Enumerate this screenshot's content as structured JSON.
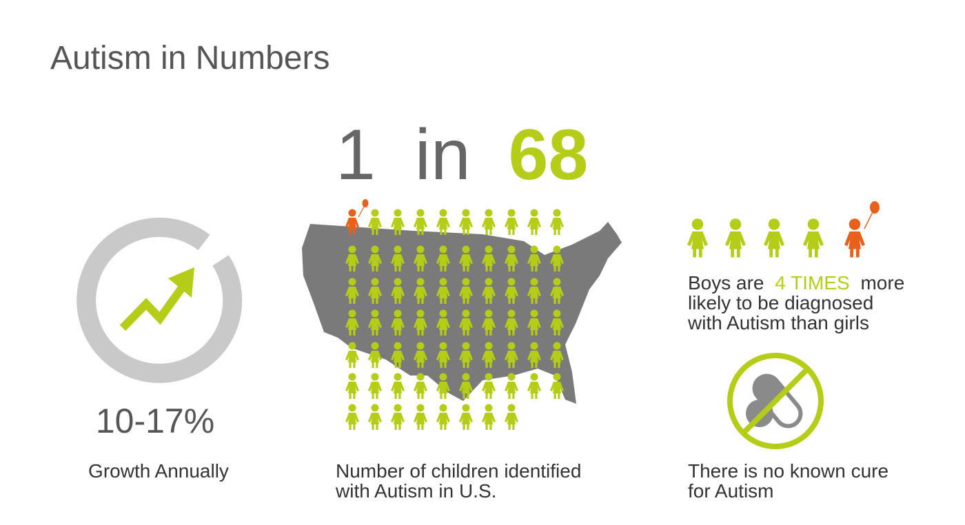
{
  "title": "Autism in Numbers",
  "growth": {
    "value": "10-17%",
    "caption": "Growth Annually"
  },
  "prevalence": {
    "numerator": 1,
    "connector": "in",
    "denominator": 68,
    "caption": [
      "Number of children identified",
      "with Autism in U.S."
    ]
  },
  "gender": {
    "pre": "Boys are",
    "highlight": "4 TIMES",
    "post": "more",
    "lines": [
      "likely to be diagnosed",
      "with Autism than girls"
    ]
  },
  "cure": {
    "caption": [
      "There is no known cure",
      "for Autism"
    ]
  }
}
